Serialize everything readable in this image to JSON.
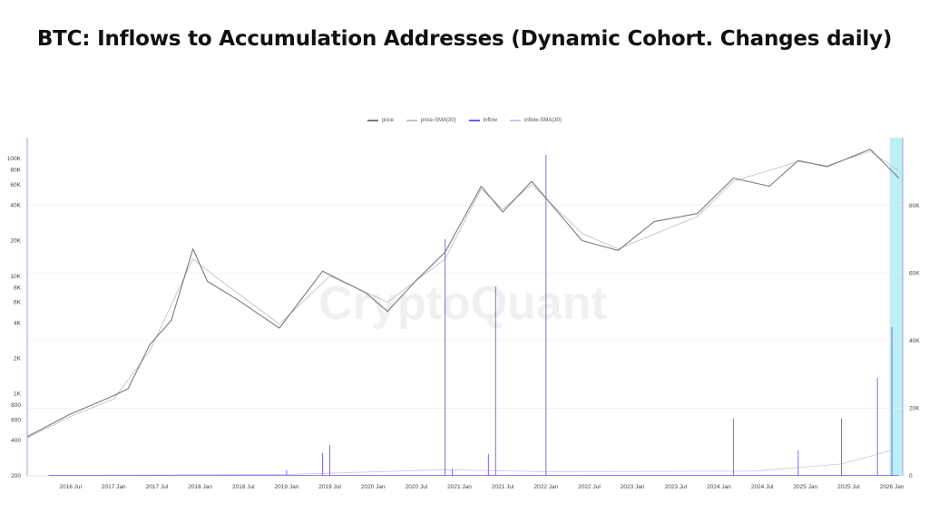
{
  "page": {
    "title": "BTC: Inflows to Accumulation Addresses (Dynamic Cohort. Changes daily)"
  },
  "watermark": "CryptoQuant",
  "colors": {
    "price": "#7a7a80",
    "price_sma": "#c4c4c8",
    "inflow": "#6c5ce7",
    "inflow_sma": "#c9c4ee",
    "highlight": "#bdeff5"
  },
  "chart_data": {
    "type": "line",
    "title": "BTC: Inflows to Accumulation Addresses (Dynamic Cohort. Changes daily)",
    "legend": {
      "placement": "top-center",
      "entries": [
        "price",
        "price-SMA(30)",
        "inflow",
        "inflow-SMA(30)"
      ]
    },
    "grid": true,
    "x_ticks": [
      "2016 Jul",
      "2017 Jan",
      "2017 Jul",
      "2018 Jan",
      "2018 Jul",
      "2019 Jan",
      "2019 Jul",
      "2020 Jan",
      "2020 Jul",
      "2021 Jan",
      "2021 Jul",
      "2022 Jan",
      "2022 Jul",
      "2023 Jan",
      "2023 Jul",
      "2024 Jan",
      "2024 Jul",
      "2025 Jan",
      "2025 Jul",
      "2026 Jan"
    ],
    "y_left": {
      "scale": "log",
      "range": [
        200,
        150000
      ],
      "ticks": [
        "200",
        "400",
        "600",
        "800",
        "1K",
        "2K",
        "4K",
        "6K",
        "8K",
        "10K",
        "20K",
        "40K",
        "60K",
        "80K",
        "100K"
      ]
    },
    "y_right": {
      "scale": "linear",
      "range": [
        0,
        100000
      ],
      "ticks": [
        "0",
        "20K",
        "40K",
        "60K",
        "80K"
      ]
    },
    "highlight_range": [
      "2026 Jan",
      "2026 Feb"
    ],
    "series": [
      {
        "name": "price",
        "axis": "left",
        "x": [
          "2016-01",
          "2016-07",
          "2017-01",
          "2017-03",
          "2017-06",
          "2017-09",
          "2017-12",
          "2018-02",
          "2018-06",
          "2018-12",
          "2019-06",
          "2019-12",
          "2020-03",
          "2020-07",
          "2020-11",
          "2021-04",
          "2021-07",
          "2021-11",
          "2022-06",
          "2022-11",
          "2023-04",
          "2023-10",
          "2024-03",
          "2024-08",
          "2024-12",
          "2025-04",
          "2025-10",
          "2025-12",
          "2026-02"
        ],
        "values": [
          430,
          670,
          960,
          1100,
          2600,
          4200,
          17000,
          9000,
          6400,
          3600,
          11000,
          7200,
          5000,
          9200,
          16000,
          58000,
          35000,
          64000,
          20000,
          16500,
          29000,
          34000,
          68000,
          58000,
          96000,
          85000,
          120000,
          90000,
          68000
        ]
      },
      {
        "name": "price-SMA(30)",
        "axis": "left",
        "x": [
          "2016-01",
          "2016-07",
          "2017-01",
          "2017-06",
          "2017-12",
          "2018-03",
          "2018-12",
          "2019-07",
          "2020-03",
          "2020-11",
          "2021-04",
          "2021-07",
          "2021-11",
          "2022-06",
          "2022-11",
          "2023-10",
          "2024-03",
          "2024-12",
          "2025-04",
          "2025-10",
          "2026-02"
        ],
        "values": [
          420,
          640,
          900,
          2300,
          14000,
          10000,
          3900,
          10000,
          6000,
          14000,
          55000,
          37000,
          60000,
          23000,
          17000,
          32000,
          64000,
          94000,
          87000,
          115000,
          78000
        ]
      },
      {
        "name": "inflow",
        "axis": "right",
        "x": [
          "2016-04",
          "2019-01",
          "2019-06",
          "2019-07",
          "2020-11",
          "2020-12",
          "2021-05",
          "2021-06",
          "2022-01",
          "2024-03",
          "2024-12",
          "2025-06",
          "2025-11",
          "2026-01"
        ],
        "values": [
          150,
          1700,
          6800,
          9100,
          70000,
          2000,
          6500,
          56000,
          95000,
          17000,
          7500,
          17000,
          29000,
          44000
        ]
      },
      {
        "name": "inflow-SMA(30)",
        "axis": "right",
        "x": [
          "2016-04",
          "2019-01",
          "2020-11",
          "2021-06",
          "2022-01",
          "2024-06",
          "2025-06",
          "2026-01"
        ],
        "values": [
          120,
          400,
          1800,
          1500,
          1200,
          1400,
          3500,
          7500
        ]
      }
    ]
  }
}
